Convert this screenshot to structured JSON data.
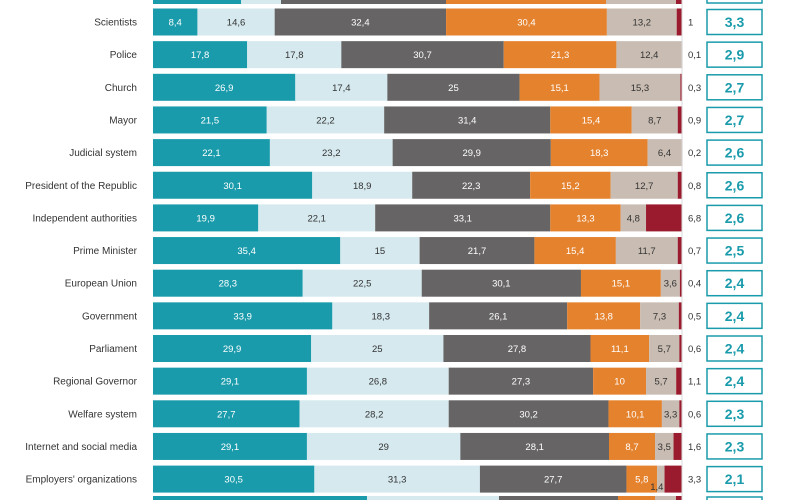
{
  "chart_data": {
    "type": "bar",
    "stacked": true,
    "orientation": "horizontal",
    "categories": [
      "Scientists",
      "Police",
      "Church",
      "Mayor",
      "Judicial system",
      "President of the Republic",
      "Independent authorities",
      "Prime Minister",
      "European Union",
      "Government",
      "Parliament",
      "Regional Governor",
      "Welfare system",
      "Internet and social media",
      "Employers' organizations"
    ],
    "series": [
      {
        "color": "#1a9bab",
        "label_color": "#ffffff",
        "values": [
          8.4,
          17.8,
          26.9,
          21.5,
          22.1,
          30.1,
          19.9,
          35.4,
          28.3,
          33.9,
          29.9,
          29.1,
          27.7,
          29.1,
          30.5
        ]
      },
      {
        "color": "#d5e9ef",
        "label_color": "#333333",
        "values": [
          14.6,
          17.8,
          17.4,
          22.2,
          23.2,
          18.9,
          22.1,
          15,
          22.5,
          18.3,
          25,
          26.8,
          28.2,
          29,
          31.3
        ]
      },
      {
        "color": "#666464",
        "label_color": "#ffffff",
        "values": [
          32.4,
          30.7,
          25,
          31.4,
          29.9,
          22.3,
          33.1,
          21.7,
          30.1,
          26.1,
          27.8,
          27.3,
          30.2,
          28.1,
          27.7
        ]
      },
      {
        "color": "#e5822d",
        "label_color": "#ffffff",
        "values": [
          30.4,
          21.3,
          15.1,
          15.4,
          18.3,
          15.2,
          13.3,
          15.4,
          15.1,
          13.8,
          11.1,
          10,
          10.1,
          8.7,
          5.8
        ]
      },
      {
        "color": "#c9bcb2",
        "label_color": "#333333",
        "values": [
          13.2,
          12.4,
          15.3,
          8.7,
          6.4,
          12.7,
          4.8,
          11.7,
          3.6,
          7.3,
          5.7,
          5.7,
          3.3,
          3.5,
          1.4
        ]
      },
      {
        "color": "#9b1b2e",
        "label_color": "#ffffff",
        "values": [
          1,
          0.1,
          0.3,
          0.9,
          0.2,
          0.8,
          6.8,
          0.7,
          0.4,
          0.5,
          0.6,
          1.1,
          0.6,
          1.6,
          3.3
        ]
      }
    ],
    "dk_values": [
      "1",
      "0,1",
      "0,3",
      "0,9",
      "0,2",
      "0,8",
      "6,8",
      "0,7",
      "0,4",
      "0,5",
      "0,6",
      "1,1",
      "0,6",
      "1,6",
      "3,3"
    ],
    "averages": [
      "3,3",
      "2,9",
      "2,7",
      "2,7",
      "2,6",
      "2,6",
      "2,6",
      "2,5",
      "2,4",
      "2,4",
      "2,4",
      "2,4",
      "2,3",
      "2,3",
      "2,1"
    ],
    "decimal_separator": ",",
    "accent_color": "#1a9bab",
    "title": "",
    "xlabel": "",
    "ylabel": "",
    "legend": "none"
  }
}
